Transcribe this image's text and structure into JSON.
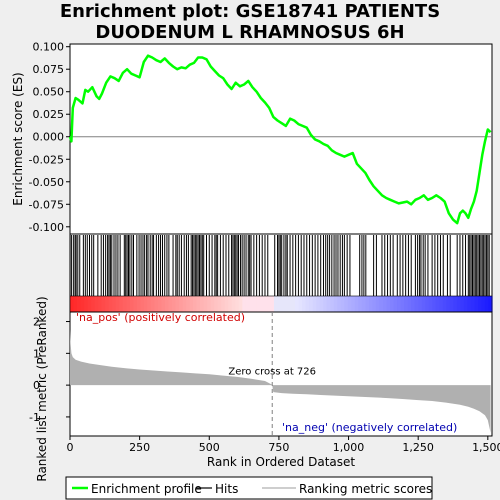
{
  "title_lines": [
    "Enrichment plot: GSE18741 PATIENTS",
    "DUODENUM L RHAMNOSUS 6H"
  ],
  "colors": {
    "profile": "#00ff00",
    "hits": "#000000",
    "metric": "#b0b0b0",
    "pos": "#ff0000",
    "neg": "#0000ff",
    "zero": "#808080"
  },
  "chart_data": [
    {
      "type": "line",
      "ylabel": "Enrichment score (ES)",
      "xlim": [
        0,
        1515
      ],
      "ylim": [
        -0.108,
        0.103
      ],
      "yticks": [
        0.1,
        0.075,
        0.05,
        0.025,
        0.0,
        -0.025,
        -0.05,
        -0.075,
        -0.1
      ],
      "ytick_labels": [
        "0.100",
        "0.075",
        "0.050",
        "0.025",
        "0.000",
        "-0.025",
        "-0.050",
        "-0.075",
        "-0.100"
      ],
      "series": [
        {
          "name": "Enrichment profile",
          "x": [
            0,
            5,
            10,
            20,
            30,
            45,
            55,
            65,
            80,
            95,
            105,
            115,
            130,
            145,
            160,
            175,
            190,
            205,
            220,
            235,
            250,
            265,
            280,
            295,
            310,
            325,
            340,
            355,
            370,
            385,
            400,
            415,
            430,
            445,
            460,
            475,
            490,
            505,
            520,
            535,
            550,
            565,
            580,
            595,
            610,
            625,
            640,
            655,
            670,
            685,
            700,
            715,
            730,
            745,
            760,
            775,
            790,
            805,
            820,
            835,
            850,
            865,
            880,
            895,
            910,
            925,
            940,
            955,
            970,
            985,
            1000,
            1015,
            1030,
            1045,
            1060,
            1075,
            1090,
            1105,
            1120,
            1135,
            1150,
            1165,
            1180,
            1195,
            1210,
            1225,
            1240,
            1255,
            1270,
            1285,
            1300,
            1315,
            1330,
            1345,
            1360,
            1375,
            1390,
            1400,
            1410,
            1420,
            1430,
            1440,
            1450,
            1460,
            1470,
            1480,
            1490,
            1500,
            1510
          ],
          "y": [
            0,
            -0.005,
            0.032,
            0.043,
            0.041,
            0.037,
            0.052,
            0.05,
            0.055,
            0.045,
            0.042,
            0.048,
            0.06,
            0.067,
            0.065,
            0.062,
            0.071,
            0.075,
            0.07,
            0.068,
            0.066,
            0.083,
            0.09,
            0.088,
            0.085,
            0.083,
            0.087,
            0.082,
            0.078,
            0.075,
            0.077,
            0.076,
            0.08,
            0.082,
            0.088,
            0.088,
            0.086,
            0.078,
            0.073,
            0.068,
            0.065,
            0.058,
            0.053,
            0.06,
            0.056,
            0.058,
            0.062,
            0.055,
            0.05,
            0.043,
            0.038,
            0.032,
            0.022,
            0.018,
            0.015,
            0.012,
            0.02,
            0.018,
            0.014,
            0.012,
            0.01,
            0.002,
            -0.003,
            -0.005,
            -0.008,
            -0.01,
            -0.015,
            -0.018,
            -0.02,
            -0.022,
            -0.02,
            -0.018,
            -0.03,
            -0.035,
            -0.04,
            -0.048,
            -0.055,
            -0.06,
            -0.065,
            -0.068,
            -0.07,
            -0.072,
            -0.074,
            -0.073,
            -0.072,
            -0.075,
            -0.07,
            -0.068,
            -0.065,
            -0.07,
            -0.068,
            -0.065,
            -0.068,
            -0.072,
            -0.085,
            -0.092,
            -0.096,
            -0.085,
            -0.082,
            -0.085,
            -0.09,
            -0.08,
            -0.072,
            -0.06,
            -0.04,
            -0.02,
            -0.005,
            0.008,
            0.005
          ]
        }
      ]
    },
    {
      "type": "bar",
      "ylabel": "Ranked list metric (PreRanked)",
      "xlabel": "Rank in Ordered Dataset",
      "xlim": [
        0,
        1515
      ],
      "ylim": [
        -1.6,
        2.3
      ],
      "xticks": [
        0,
        250,
        500,
        750,
        1000,
        1250,
        1500
      ],
      "xtick_labels": [
        "0",
        "250",
        "500",
        "750",
        "1,000",
        "1,250",
        "1,500"
      ],
      "yticks": [
        2,
        1,
        0,
        -1
      ],
      "ytick_labels": [
        "2",
        "1",
        "0",
        "-1"
      ],
      "zero_cross": 726,
      "zero_cross_label": "Zero cross at 726",
      "pos_label": "'na_pos' (positively correlated)",
      "neg_label": "'na_neg' (negatively correlated)",
      "series": [
        {
          "name": "Ranking metric scores",
          "x": [
            0,
            2,
            5,
            10,
            20,
            40,
            70,
            100,
            150,
            200,
            250,
            300,
            350,
            400,
            450,
            500,
            550,
            600,
            650,
            700,
            726,
            730,
            760,
            800,
            850,
            900,
            950,
            1000,
            1050,
            1100,
            1150,
            1200,
            1250,
            1300,
            1350,
            1400,
            1430,
            1450,
            1470,
            1490,
            1500,
            1505,
            1510
          ],
          "y": [
            1.75,
            1.3,
            1.0,
            0.88,
            0.8,
            0.74,
            0.68,
            0.64,
            0.58,
            0.53,
            0.49,
            0.46,
            0.43,
            0.4,
            0.37,
            0.34,
            0.3,
            0.26,
            0.2,
            0.13,
            0.01,
            -0.22,
            -0.25,
            -0.27,
            -0.29,
            -0.31,
            -0.33,
            -0.35,
            -0.37,
            -0.39,
            -0.41,
            -0.44,
            -0.47,
            -0.5,
            -0.55,
            -0.62,
            -0.68,
            -0.74,
            -0.82,
            -0.95,
            -1.1,
            -1.3,
            -1.5
          ]
        }
      ]
    }
  ],
  "hit_ranks": [
    5,
    12,
    18,
    22,
    28,
    35,
    48,
    55,
    62,
    70,
    78,
    85,
    100,
    112,
    120,
    128,
    135,
    140,
    145,
    150,
    158,
    165,
    172,
    180,
    195,
    200,
    205,
    210,
    215,
    222,
    228,
    240,
    248,
    255,
    262,
    268,
    275,
    280,
    288,
    295,
    300,
    310,
    318,
    325,
    332,
    340,
    348,
    355,
    370,
    380,
    385,
    392,
    400,
    410,
    418,
    425,
    435,
    440,
    445,
    450,
    455,
    460,
    465,
    470,
    475,
    480,
    490,
    500,
    510,
    520,
    525,
    530,
    540,
    550,
    560,
    570,
    580,
    585,
    590,
    595,
    600,
    605,
    612,
    618,
    625,
    632,
    640,
    645,
    650,
    660,
    670,
    680,
    690,
    700,
    710,
    735,
    745,
    750,
    755,
    760,
    768,
    775,
    780,
    790,
    800,
    810,
    820,
    830,
    840,
    850,
    860,
    870,
    880,
    890,
    900,
    910,
    918,
    925,
    932,
    940,
    948,
    955,
    962,
    970,
    978,
    985,
    995,
    1005,
    1040,
    1048,
    1055,
    1062,
    1090,
    1100,
    1120,
    1130,
    1140,
    1150,
    1160,
    1175,
    1185,
    1195,
    1205,
    1215,
    1225,
    1240,
    1248,
    1255,
    1260,
    1268,
    1275,
    1285,
    1300,
    1310,
    1320,
    1330,
    1340,
    1355,
    1365,
    1390,
    1400,
    1410,
    1420,
    1430,
    1435,
    1440,
    1445,
    1450,
    1455,
    1460,
    1465,
    1470,
    1475,
    1480,
    1485,
    1490,
    1495,
    1500,
    1505
  ],
  "legend": [
    {
      "label": "Enrichment profile",
      "kind": "profile"
    },
    {
      "label": "Hits",
      "kind": "hits"
    },
    {
      "label": "Ranking metric scores",
      "kind": "metric"
    }
  ]
}
